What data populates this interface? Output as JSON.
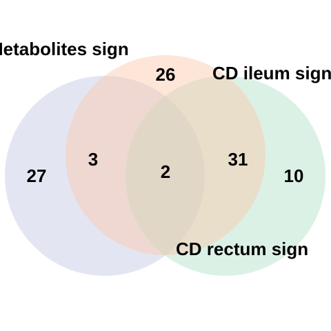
{
  "venn": {
    "sets": [
      {
        "label": "Metabolites sign",
        "color": "#c0c8e2"
      },
      {
        "label": "CD ileum sign",
        "color": "#fac8a8"
      },
      {
        "label": "CD rectum sign",
        "color": "#b0e0c8"
      }
    ],
    "regions": {
      "metabolites_only": "27",
      "ileum_only": "26",
      "rectum_only": "10",
      "metabolites_ileum": "3",
      "ileum_rectum": "31",
      "all_three": "2"
    }
  }
}
